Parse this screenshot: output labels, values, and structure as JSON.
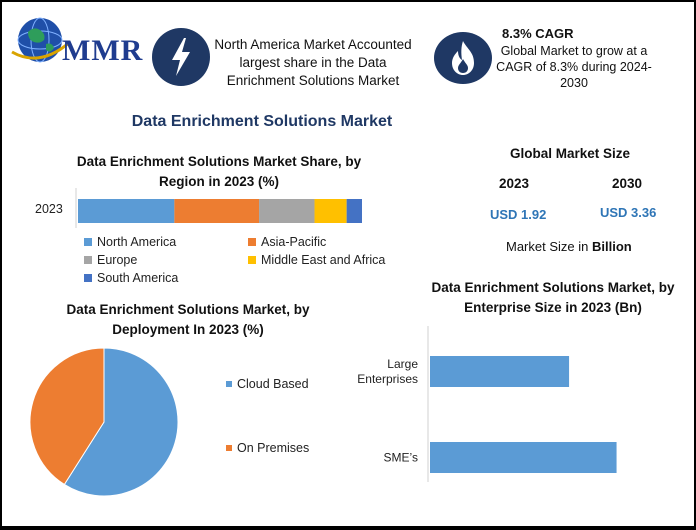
{
  "brand": {
    "logo_text": "MMR"
  },
  "info": {
    "share_text": "North America Market Accounted largest share in the Data Enrichment Solutions Market",
    "cagr_title": "8.3% CAGR",
    "cagr_text": "Global Market to grow at a CAGR of 8.3% during 2024-2030"
  },
  "main_title": "Data Enrichment Solutions Market",
  "market_size": {
    "title": "Global Market Size",
    "year1": "2023",
    "year2": "2030",
    "value1": "USD 1.92",
    "value2": "USD 3.36",
    "unit_prefix": "Market Size in ",
    "unit_bold": "Billion"
  },
  "colors": {
    "navy": "#1f3864",
    "blue": "#5b9bd5",
    "orange": "#ed7d31",
    "gray": "#a5a5a5",
    "yellow": "#ffc000",
    "dark_blue": "#4472c4",
    "value_blue": "#2e75b6"
  },
  "icons": {
    "share": "lightning-bolt-icon",
    "cagr": "flame-icon",
    "logo": "globe-icon"
  },
  "chart_data": [
    {
      "type": "bar",
      "orientation": "horizontal-stacked",
      "title": "Data Enrichment Solutions Market Share, by Region in 2023 (%)",
      "categories": [
        "2023"
      ],
      "series": [
        {
          "name": "North America",
          "values": [
            33
          ],
          "color": "#5b9bd5"
        },
        {
          "name": "Asia-Pacific",
          "values": [
            29
          ],
          "color": "#ed7d31"
        },
        {
          "name": "Europe",
          "values": [
            19
          ],
          "color": "#a5a5a5"
        },
        {
          "name": "Middle East and Africa",
          "values": [
            11
          ],
          "color": "#ffc000"
        },
        {
          "name": "South America",
          "values": [
            8
          ],
          "color": "#4472c4"
        }
      ],
      "legend_position": "bottom"
    },
    {
      "type": "pie",
      "title": "Data Enrichment Solutions Market, by Deployment In 2023 (%)",
      "labels": [
        "Cloud Based",
        "On Premises"
      ],
      "values": [
        59,
        41
      ],
      "colors": [
        "#5b9bd5",
        "#ed7d31"
      ],
      "legend_position": "right"
    },
    {
      "type": "bar",
      "orientation": "horizontal",
      "title": "Data Enrichment Solutions Market, by Enterprise Size in 2023 (Bn)",
      "categories": [
        "Large Enterprises",
        "SME’s"
      ],
      "category_lines": [
        [
          "Large",
          "Enterprises"
        ],
        [
          "SME’s"
        ]
      ],
      "values": [
        0.82,
        1.1
      ],
      "xlim": [
        0,
        1.25
      ],
      "color": "#5b9bd5"
    }
  ]
}
